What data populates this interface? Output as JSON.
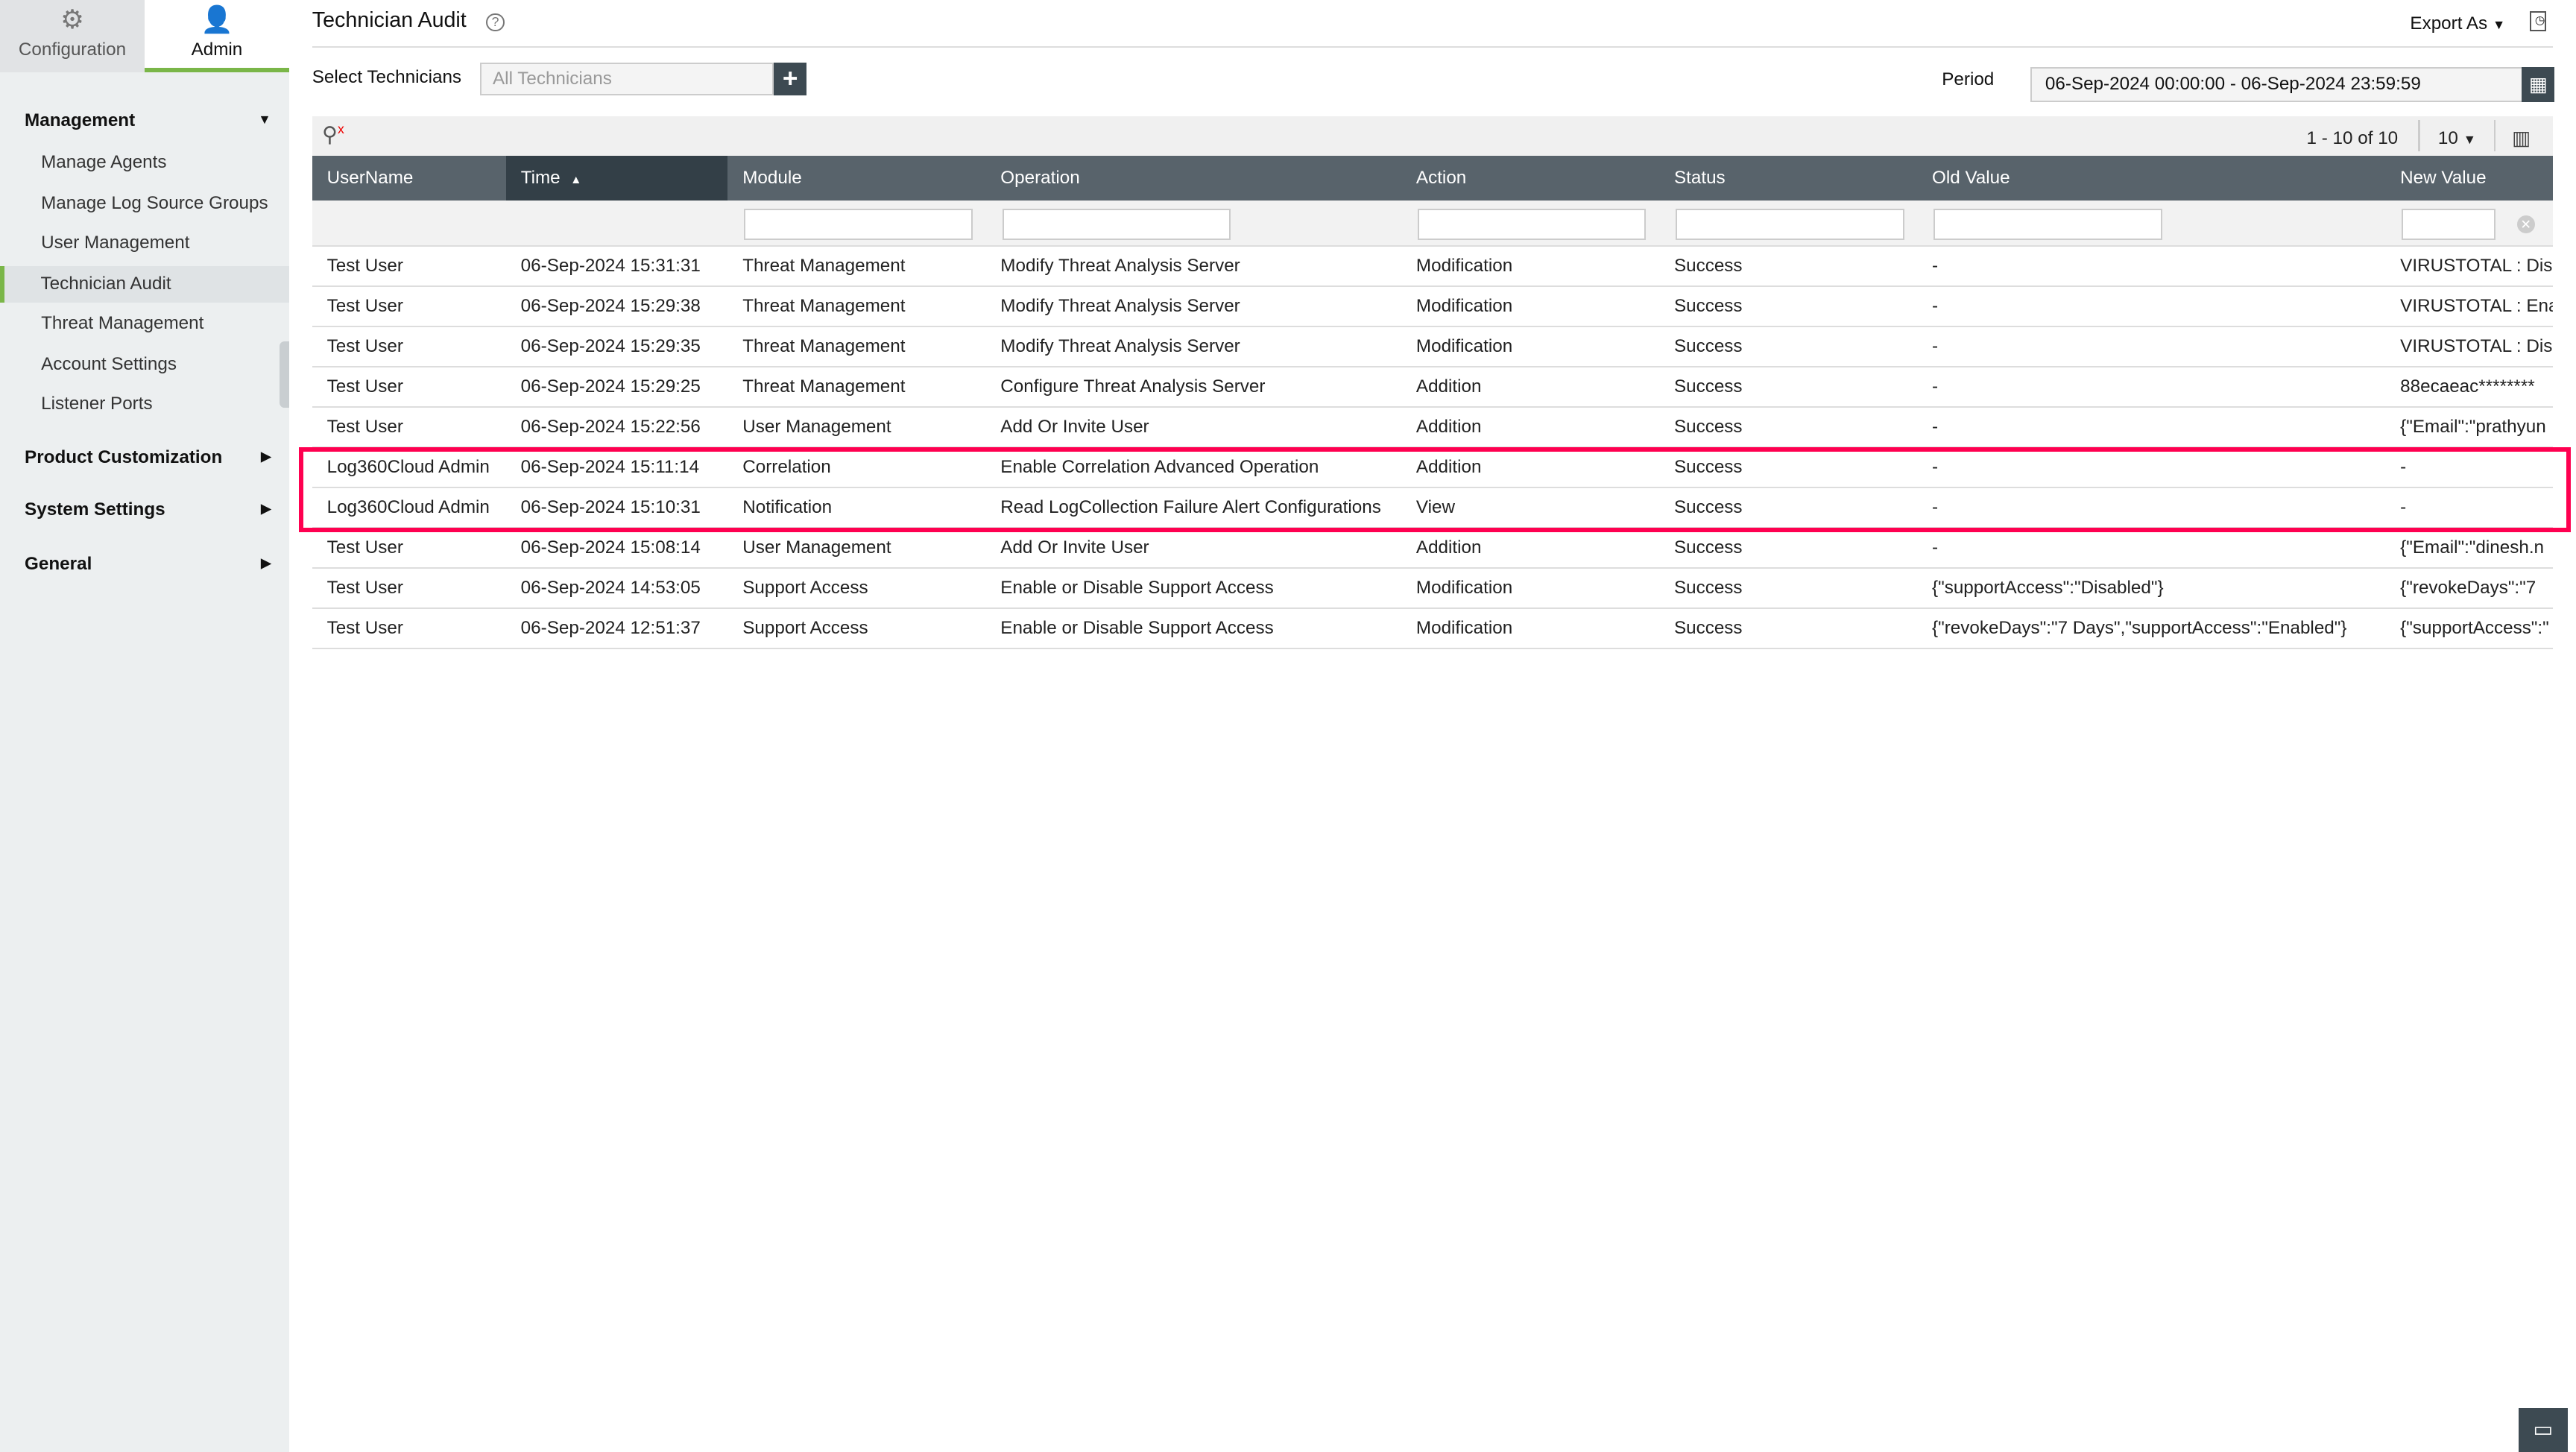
{
  "top_tabs": [
    {
      "label": "Configuration",
      "icon": "gear-icon"
    },
    {
      "label": "Admin",
      "icon": "user-icon"
    }
  ],
  "sidebar": {
    "management": "Management",
    "items": [
      "Manage Agents",
      "Manage Log Source Groups",
      "User Management",
      "Technician Audit",
      "Threat Management",
      "Account Settings",
      "Listener Ports"
    ],
    "selected": "Technician Audit",
    "sections": [
      "Product Customization",
      "System Settings",
      "General"
    ]
  },
  "header": {
    "title": "Technician Audit",
    "export_label": "Export As"
  },
  "filters": {
    "select_technicians_label": "Select Technicians",
    "technicians_placeholder": "All Technicians",
    "period_label": "Period",
    "period_value": "06-Sep-2024 00:00:00 - 06-Sep-2024 23:59:59"
  },
  "pagination": {
    "range": "1 - 10 of 10",
    "page_size": "10"
  },
  "table": {
    "columns": [
      "UserName",
      "Time",
      "Module",
      "Operation",
      "Action",
      "Status",
      "Old Value",
      "New Value"
    ],
    "sorted_column": "Time",
    "sort_direction": "ascending",
    "rows": [
      [
        "Test User",
        "06-Sep-2024 15:31:31",
        "Threat Management",
        "Modify Threat Analysis Server",
        "Modification",
        "Success",
        "-",
        "VIRUSTOTAL : Disa"
      ],
      [
        "Test User",
        "06-Sep-2024 15:29:38",
        "Threat Management",
        "Modify Threat Analysis Server",
        "Modification",
        "Success",
        "-",
        "VIRUSTOTAL : Ena"
      ],
      [
        "Test User",
        "06-Sep-2024 15:29:35",
        "Threat Management",
        "Modify Threat Analysis Server",
        "Modification",
        "Success",
        "-",
        "VIRUSTOTAL : Disa"
      ],
      [
        "Test User",
        "06-Sep-2024 15:29:25",
        "Threat Management",
        "Configure Threat Analysis Server",
        "Addition",
        "Success",
        "-",
        "88ecaeac********"
      ],
      [
        "Test User",
        "06-Sep-2024 15:22:56",
        "User Management",
        "Add Or Invite User",
        "Addition",
        "Success",
        "-",
        "{\"Email\":\"prathyun"
      ],
      [
        "Log360Cloud Admin",
        "06-Sep-2024 15:11:14",
        "Correlation",
        "Enable Correlation Advanced Operation",
        "Addition",
        "Success",
        "-",
        "-"
      ],
      [
        "Log360Cloud Admin",
        "06-Sep-2024 15:10:31",
        "Notification",
        "Read LogCollection Failure Alert Configurations",
        "View",
        "Success",
        "-",
        "-"
      ],
      [
        "Test User",
        "06-Sep-2024 15:08:14",
        "User Management",
        "Add Or Invite User",
        "Addition",
        "Success",
        "-",
        "{\"Email\":\"dinesh.n"
      ],
      [
        "Test User",
        "06-Sep-2024 14:53:05",
        "Support Access",
        "Enable or Disable Support Access",
        "Modification",
        "Success",
        "{\"supportAccess\":\"Disabled\"}",
        "{\"revokeDays\":\"7"
      ],
      [
        "Test User",
        "06-Sep-2024 12:51:37",
        "Support Access",
        "Enable or Disable Support Access",
        "Modification",
        "Success",
        "{\"revokeDays\":\"7 Days\",\"supportAccess\":\"Enabled\"}",
        "{\"supportAccess\":\""
      ]
    ],
    "highlighted_rows": [
      5,
      6
    ]
  },
  "colors": {
    "accent": "#7ab648",
    "header": "#58636b",
    "header_sorted": "#333f47",
    "highlight": "#ff0050"
  }
}
